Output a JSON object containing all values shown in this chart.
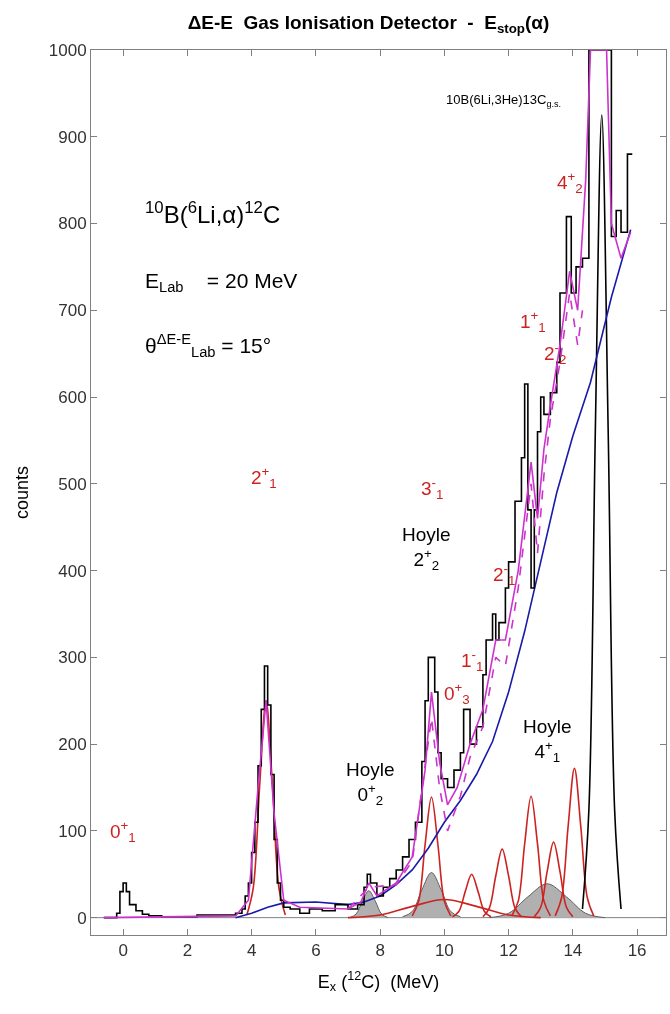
{
  "chart_data": {
    "type": "line",
    "title": "ΔE-E  Gas Ionisation Detector  -  E$_{stop}$(α)",
    "xlabel": "E$_{x}$ ($^{12}$C)  (MeV)",
    "ylabel": "counts",
    "xlim": [
      -1,
      16.9
    ],
    "xticks": [
      0,
      2,
      4,
      6,
      8,
      10,
      12,
      14,
      16
    ],
    "ylim": [
      -20,
      1000
    ],
    "yticks": [
      0,
      100,
      200,
      300,
      400,
      500,
      600,
      700,
      800,
      900,
      1000
    ],
    "grid": false,
    "marker": "none",
    "ref_lines": [
      {
        "axis": "y",
        "value": 0,
        "color": "#808080"
      }
    ],
    "series": [
      {
        "type": "area",
        "color": "#b0b0b0",
        "x": [
          7.05,
          7.25,
          7.45,
          7.65,
          7.85,
          8.05,
          8.25
        ],
        "values": [
          0,
          4,
          19,
          31,
          19,
          4,
          0
        ]
      },
      {
        "type": "area",
        "color": "#b0b0b0",
        "x": [
          8.7,
          9.0,
          9.3,
          9.6,
          9.9,
          10.2,
          10.5
        ],
        "values": [
          1,
          7,
          32,
          52,
          32,
          7,
          1
        ]
      },
      {
        "type": "area",
        "color": "#b0b0b0",
        "x": [
          11.4,
          12.0,
          12.6,
          13.2,
          13.8,
          14.4,
          15.0
        ],
        "values": [
          0,
          5,
          24,
          39,
          24,
          5,
          0
        ]
      },
      {
        "color": "#cc2222",
        "x": [
          3.85,
          4.05,
          4.25,
          4.45,
          4.65,
          4.85,
          5.05
        ],
        "values": [
          3,
          34,
          152,
          250,
          152,
          34,
          3
        ]
      },
      {
        "color": "#cc2222",
        "x": [
          9.0,
          9.2,
          9.4,
          9.6,
          9.8,
          10.0,
          10.2
        ],
        "values": [
          2,
          19,
          84,
          139,
          84,
          19,
          2
        ]
      },
      {
        "color": "#cc2222",
        "x": [
          7,
          8,
          9,
          10,
          11,
          12,
          13
        ],
        "values": [
          0,
          3,
          13,
          21,
          13,
          3,
          0
        ]
      },
      {
        "color": "#cc2222",
        "x": [
          10.25,
          10.45,
          10.65,
          10.85,
          11.05,
          11.25,
          11.45
        ],
        "values": [
          1,
          7,
          30,
          50,
          30,
          7,
          1
        ]
      },
      {
        "color": "#cc2222",
        "x": [
          11.2,
          11.4,
          11.6,
          11.8,
          12.0,
          12.2,
          12.4
        ],
        "values": [
          1,
          11,
          48,
          79,
          48,
          11,
          1
        ]
      },
      {
        "color": "#cc2222",
        "x": [
          12.1,
          12.3,
          12.5,
          12.7,
          12.9,
          13.1,
          13.3
        ],
        "values": [
          2,
          19,
          85,
          140,
          85,
          19,
          2
        ]
      },
      {
        "color": "#cc2222",
        "x": [
          12.8,
          13.0,
          13.2,
          13.4,
          13.6,
          13.8,
          14.0
        ],
        "values": [
          1,
          12,
          53,
          87,
          53,
          12,
          1
        ]
      },
      {
        "color": "#cc2222",
        "x": [
          13.45,
          13.65,
          13.85,
          14.05,
          14.25,
          14.45,
          14.65
        ],
        "values": [
          2,
          23,
          104,
          172,
          104,
          23,
          2
        ]
      },
      {
        "color": "#000000",
        "x": [
          14.3,
          14.5,
          14.7,
          14.9,
          15.1,
          15.3,
          15.5
        ],
        "values": [
          10,
          125,
          561,
          925,
          561,
          125,
          10
        ]
      },
      {
        "color": "#1a1aaa",
        "x": [
          3.5,
          4.0,
          4.5,
          5.0,
          6.0,
          7.0,
          7.5,
          8.0,
          8.5,
          9.0,
          9.5,
          10.0,
          10.5,
          11.0,
          11.5,
          12.0,
          12.5,
          13.0,
          13.5,
          14.0,
          14.55,
          15.2,
          15.8
        ],
        "values": [
          0,
          5,
          12,
          17,
          18,
          15,
          18,
          25,
          38,
          55,
          80,
          110,
          135,
          165,
          203,
          260,
          330,
          410,
          490,
          555,
          617,
          715,
          793
        ]
      },
      {
        "type": "step",
        "color": "#000000",
        "x": [
          -0.6,
          -0.2,
          -0.1,
          0,
          0.1,
          0.2,
          0.4,
          0.6,
          0.8,
          1.2,
          2.3,
          3.5,
          3.7,
          3.8,
          3.9,
          4.0,
          4.1,
          4.2,
          4.3,
          4.4,
          4.5,
          4.6,
          4.7,
          4.8,
          4.9,
          5.0,
          5.2,
          5.5,
          5.8,
          6.2,
          6.6,
          7.0,
          7.3,
          7.5,
          7.6,
          7.7,
          7.9,
          8.1,
          8.3,
          8.5,
          8.7,
          8.9,
          9.1,
          9.3,
          9.4,
          9.5,
          9.7,
          9.8,
          9.9,
          10.1,
          10.3,
          10.5,
          10.6,
          10.8,
          11.0,
          11.2,
          11.3,
          11.5,
          11.6,
          11.7,
          11.9,
          12.0,
          12.2,
          12.4,
          12.5,
          12.6,
          12.7,
          12.8,
          12.9,
          13.0,
          13.1,
          13.3,
          13.5,
          13.6,
          13.8,
          13.95,
          14.1,
          14.3,
          14.5,
          15.2,
          15.35,
          15.5,
          15.7,
          15.85
        ],
        "values": [
          0,
          5,
          30,
          40,
          30,
          15,
          8,
          4,
          2,
          1,
          3,
          5,
          10,
          25,
          40,
          75,
          110,
          175,
          240,
          290,
          245,
          165,
          90,
          40,
          20,
          12,
          10,
          5,
          10,
          8,
          15,
          10,
          15,
          35,
          50,
          40,
          25,
          35,
          45,
          55,
          70,
          90,
          110,
          180,
          250,
          300,
          260,
          190,
          160,
          150,
          170,
          190,
          240,
          200,
          220,
          280,
          320,
          350,
          320,
          340,
          380,
          410,
          480,
          530,
          615,
          470,
          380,
          470,
          560,
          600,
          580,
          605,
          640,
          720,
          808,
          720,
          750,
          760,
          1000,
          785,
          815,
          790,
          880,
          880
        ]
      },
      {
        "color": "#cc33cc",
        "line_style": "dashed",
        "x": [
          7.0,
          7.65,
          8.5,
          9.0,
          9.6,
          9.85,
          10.1,
          10.5,
          10.8,
          11.2,
          11.6,
          11.9,
          12.3,
          12.7,
          12.9,
          13.1,
          13.3,
          13.6,
          13.9,
          14.15,
          14.3
        ],
        "values": [
          10,
          35,
          38,
          65,
          230,
          150,
          100,
          140,
          185,
          220,
          300,
          290,
          380,
          500,
          420,
          510,
          575,
          640,
          720,
          660,
          700
        ]
      },
      {
        "color": "#cc33cc",
        "x": [
          -0.6,
          3.5,
          3.9,
          4.2,
          4.45,
          4.7,
          5.0,
          5.5,
          7.0,
          7.4,
          7.65,
          7.9,
          8.5,
          9.0,
          9.4,
          9.6,
          9.85,
          10.1,
          10.4,
          10.8,
          11.2,
          11.6,
          11.9,
          12.3,
          12.7,
          12.9,
          13.1,
          13.3,
          13.6,
          13.9,
          14.15,
          14.4,
          14.55,
          15.05,
          15.2,
          15.5,
          15.8
        ],
        "values": [
          0,
          2,
          20,
          150,
          250,
          120,
          20,
          12,
          10,
          18,
          40,
          25,
          40,
          70,
          170,
          260,
          180,
          130,
          150,
          200,
          240,
          320,
          320,
          400,
          525,
          460,
          540,
          590,
          660,
          745,
          700,
          850,
          1000,
          1000,
          800,
          760,
          790
        ]
      }
    ],
    "annotations": [
      "$^{10}$B($^{6}$Li,α)$^{12}$C",
      "E$_{Lab}$    = 20 MeV",
      "θ$^{ΔE-E}$$_{Lab}$ = 15°",
      "10B(6Li,3He)13C$_{g.s.}$",
      "0$^{+}$$_{1}$",
      "2$^{+}$$_{1}$",
      "Hoyle\n0$^{+}$$_{2}$",
      "Hoyle\n2$^{+}$$_{2}$",
      "3$^{-}$$_{1}$",
      "0$^{+}$$_{3}$",
      "1$^{-}$$_{1}$",
      "2$^{-}$$_{1}$",
      "Hoyle\n4$^{+}$$_{1}$",
      "1$^{+}$$_{1}$",
      "2$^{-}$$_{2}$",
      "4$^{+}$$_{2}$"
    ]
  }
}
